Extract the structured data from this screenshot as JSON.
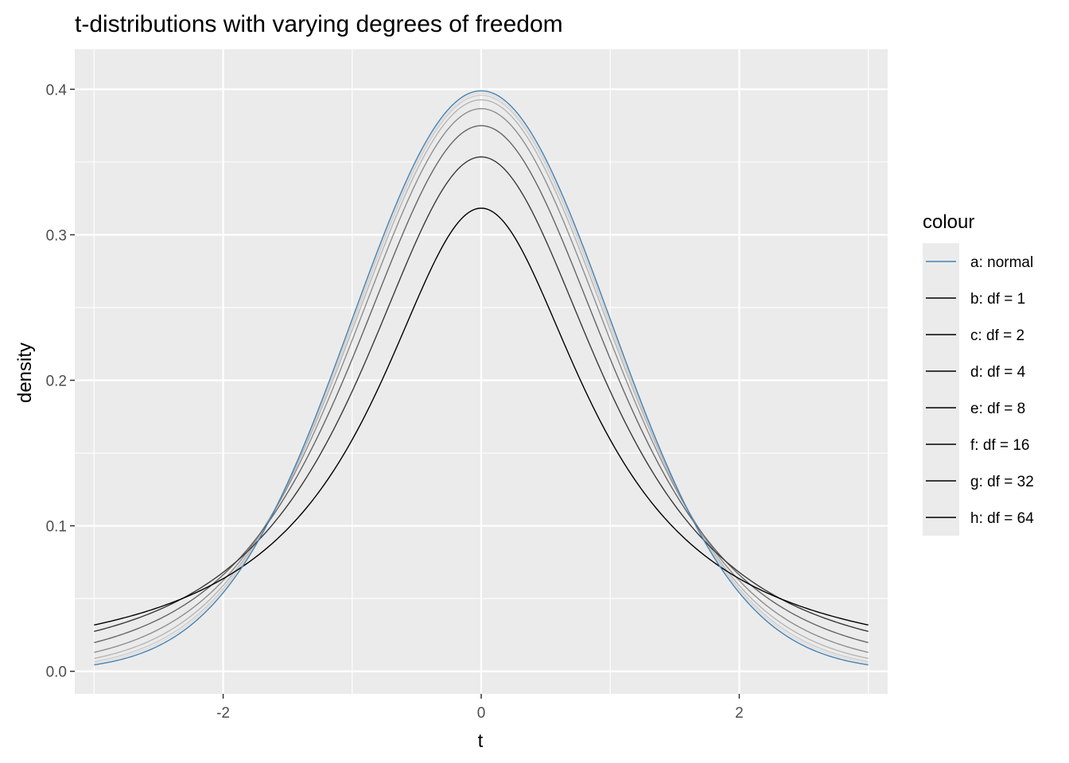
{
  "chart_data": {
    "type": "line",
    "title": "t-distributions with varying degrees of freedom",
    "xlabel": "t",
    "ylabel": "density",
    "xlim": [
      -3.15,
      3.15
    ],
    "ylim": [
      -0.0155,
      0.4275
    ],
    "x_range": [
      -3,
      3
    ],
    "x_ticks": [
      -2,
      0,
      2
    ],
    "x_tick_labels": [
      "-2",
      "0",
      "2"
    ],
    "y_ticks": [
      0.0,
      0.1,
      0.2,
      0.3,
      0.4
    ],
    "y_tick_labels": [
      "0.0",
      "0.1",
      "0.2",
      "0.3",
      "0.4"
    ],
    "grid": true,
    "panel_background": "#ebebeb",
    "legend": {
      "title": "colour",
      "position": "right"
    },
    "series": [
      {
        "name": "a: normal",
        "distribution": "normal",
        "df": null,
        "color": "#4682b4"
      },
      {
        "name": "b: df = 1",
        "distribution": "t",
        "df": 1,
        "color": "#000000"
      },
      {
        "name": "c: df = 2",
        "distribution": "t",
        "df": 2,
        "color": "#3a3a3a"
      },
      {
        "name": "d: df = 4",
        "distribution": "t",
        "df": 4,
        "color": "#666666"
      },
      {
        "name": "e: df = 8",
        "distribution": "t",
        "df": 8,
        "color": "#8e8e8e"
      },
      {
        "name": "f: df = 16",
        "distribution": "t",
        "df": 16,
        "color": "#b5b5b5"
      },
      {
        "name": "g: df = 32",
        "distribution": "t",
        "df": 32,
        "color": "#cdcdcd"
      },
      {
        "name": "h: df = 64",
        "distribution": "t",
        "df": 64,
        "color": "#dcdcdc"
      }
    ],
    "legend_key_color": "#000000"
  }
}
